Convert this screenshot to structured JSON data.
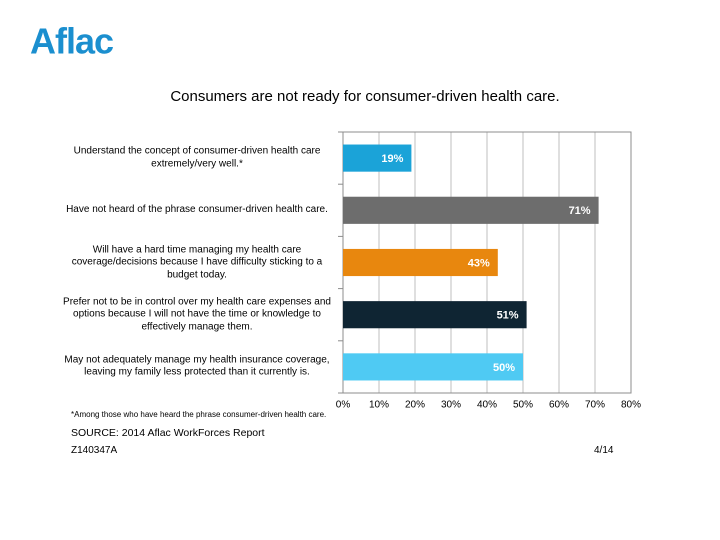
{
  "logo": "Aflac",
  "chart_data": {
    "type": "barh",
    "title": "Consumers are not ready for consumer-driven health care.",
    "categories": [
      "Understand the concept of consumer-driven health care extremely/very well.*",
      "Have not heard of the phrase consumer-driven health care.",
      "Will have a hard time managing my health care coverage/decisions because I have difficulty sticking to a budget today.",
      "Prefer not to be in control over my health care expenses and options because I will not have the time or knowledge to effectively manage them.",
      "May not adequately manage my health insurance coverage, leaving my family less protected than it currently is."
    ],
    "values": [
      19,
      71,
      43,
      51,
      50
    ],
    "value_labels": [
      "19%",
      "71%",
      "43%",
      "51%",
      "50%"
    ],
    "colors": [
      "#1ba3d8",
      "#6d6d6d",
      "#e8870e",
      "#0f2533",
      "#4fcaf3"
    ],
    "xlim": [
      0,
      80
    ],
    "xticks": [
      {
        "value": 0,
        "label": "0%"
      },
      {
        "value": 10,
        "label": "10%"
      },
      {
        "value": 20,
        "label": "20%"
      },
      {
        "value": 30,
        "label": "30%"
      },
      {
        "value": 40,
        "label": "40%"
      },
      {
        "value": 50,
        "label": "50%"
      },
      {
        "value": 60,
        "label": "60%"
      },
      {
        "value": 70,
        "label": "70%"
      },
      {
        "value": 80,
        "label": "80%"
      }
    ],
    "grid": true,
    "footnote": "*Among those who have heard the phrase consumer-driven health care."
  },
  "source": "SOURCE: 2014 Aflac WorkForces Report",
  "code": "Z140347A",
  "date": "4/14"
}
